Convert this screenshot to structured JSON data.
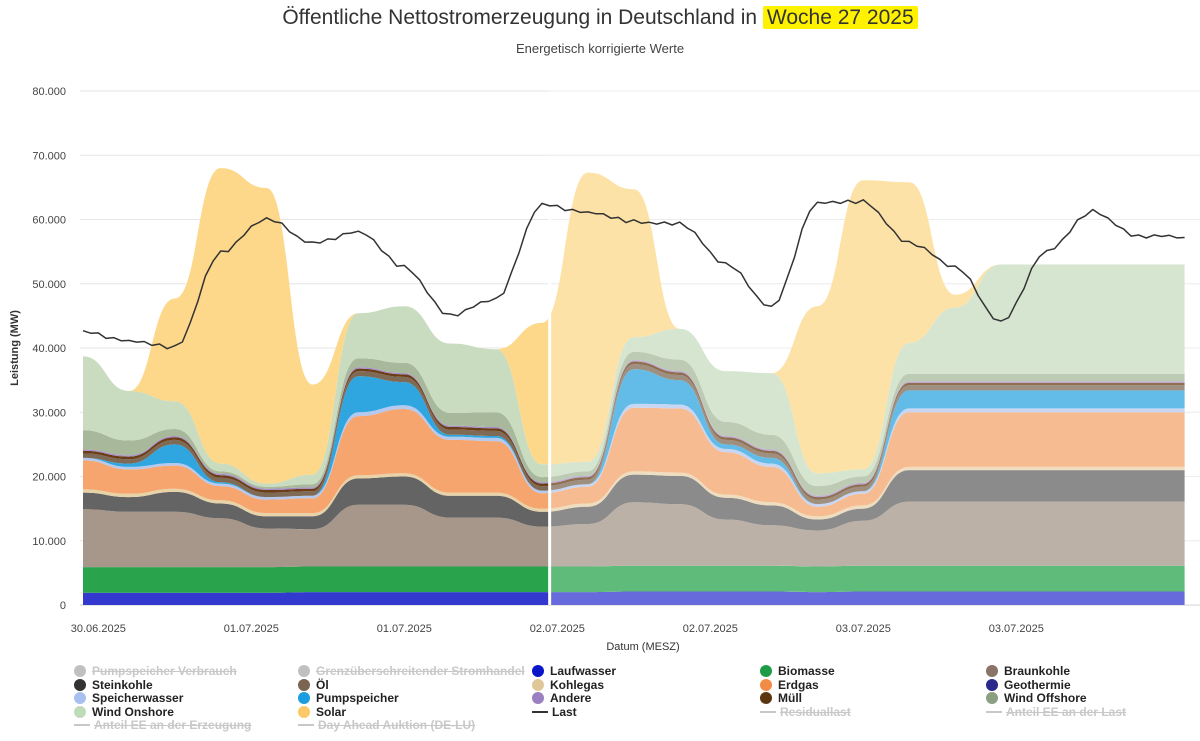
{
  "chart_data": {
    "type": "area",
    "title_prefix": "Öffentliche Nettostromerzeugung in Deutschland in ",
    "title_highlight": "Woche 27 2025",
    "subtitle": "Energetisch korrigierte Werte",
    "ylabel": "Leistung (MW)",
    "xlabel": "Datum (MESZ)",
    "ylim": [
      0,
      80000
    ],
    "yticks": [
      "0",
      "10.000",
      "20.000",
      "30.000",
      "40.000",
      "50.000",
      "60.000",
      "70.000",
      "80.000"
    ],
    "xticks": [
      "30.06.2025",
      "30.06.2025",
      "01.07.2025",
      "01.07.2025",
      "02.07.2025",
      "02.07.2025",
      "03.07.2025",
      "03.07.2025"
    ],
    "x_hours": [
      0,
      6,
      12,
      18,
      24,
      30,
      36,
      42,
      48,
      54,
      60,
      66,
      72,
      78,
      84,
      90,
      96,
      102,
      108,
      114,
      120,
      126,
      132,
      138,
      144
    ],
    "actual_until_hour": 61,
    "series": [
      {
        "name": "Laufwasser",
        "color": "#3338cf",
        "values": [
          1900,
          1900,
          1900,
          1900,
          1900,
          2000,
          2000,
          2000,
          2000,
          2000,
          2000,
          2000,
          2100,
          2100,
          2100,
          2100,
          2000,
          2100,
          2100,
          2100,
          2100,
          2100,
          2100,
          2100,
          2100
        ]
      },
      {
        "name": "Biomasse",
        "color": "#2aa44c",
        "values": [
          4000,
          4000,
          4000,
          4000,
          4000,
          4000,
          4000,
          4000,
          4000,
          4000,
          4000,
          4000,
          4000,
          4000,
          4000,
          4000,
          4000,
          4000,
          4000,
          4000,
          4000,
          4000,
          4000,
          4000,
          4000
        ]
      },
      {
        "name": "Braunkohle",
        "color": "#a6978a",
        "values": [
          9000,
          8600,
          8600,
          7600,
          6000,
          5800,
          9600,
          9600,
          7600,
          7600,
          6200,
          6600,
          9900,
          9600,
          7200,
          6300,
          5600,
          7000,
          10000,
          10000,
          10000,
          10000,
          10000,
          10000,
          10000
        ]
      },
      {
        "name": "Steinkohle",
        "color": "#646464",
        "values": [
          2600,
          2300,
          3100,
          2300,
          1900,
          2000,
          4100,
          4400,
          3400,
          3400,
          2300,
          2700,
          4300,
          4400,
          3400,
          3100,
          1700,
          1900,
          4900,
          4900,
          4900,
          4900,
          4900,
          4900,
          4900
        ]
      },
      {
        "name": "Kohlegas",
        "color": "#e8d2a8",
        "values": [
          500,
          500,
          500,
          500,
          500,
          500,
          500,
          500,
          500,
          500,
          500,
          500,
          500,
          500,
          500,
          500,
          500,
          500,
          500,
          500,
          500,
          500,
          500,
          500,
          500
        ]
      },
      {
        "name": "Erdgas",
        "color": "#f5a56d",
        "values": [
          4500,
          3800,
          3600,
          2200,
          2100,
          2300,
          9200,
          10000,
          8200,
          8000,
          2400,
          2600,
          9900,
          10000,
          6600,
          5500,
          1500,
          1800,
          8500,
          8500,
          8500,
          8500,
          8500,
          8500,
          8500
        ]
      },
      {
        "name": "Speicherwasser",
        "color": "#b5c8ee",
        "values": [
          400,
          400,
          400,
          400,
          400,
          400,
          600,
          600,
          500,
          500,
          400,
          400,
          600,
          600,
          500,
          500,
          400,
          400,
          600,
          600,
          600,
          600,
          600,
          600,
          600
        ]
      },
      {
        "name": "Pumpspeicher",
        "color": "#2fa6e0",
        "values": [
          0,
          500,
          2900,
          200,
          0,
          0,
          5600,
          3600,
          300,
          300,
          0,
          0,
          5400,
          3800,
          700,
          900,
          0,
          0,
          2800,
          2800,
          2800,
          2800,
          2800,
          2800,
          2800
        ]
      },
      {
        "name": "Öl",
        "color": "#7e6a55",
        "values": [
          700,
          700,
          700,
          700,
          700,
          700,
          800,
          800,
          800,
          800,
          700,
          700,
          800,
          800,
          700,
          700,
          700,
          700,
          800,
          800,
          800,
          800,
          800,
          800,
          800
        ]
      },
      {
        "name": "Müll",
        "color": "#6b3e17",
        "values": [
          400,
          400,
          400,
          400,
          400,
          400,
          400,
          400,
          400,
          400,
          400,
          400,
          400,
          400,
          400,
          400,
          400,
          400,
          400,
          400,
          400,
          400,
          400,
          400,
          400
        ]
      },
      {
        "name": "Andere",
        "color": "#a58cc9",
        "values": [
          200,
          200,
          200,
          200,
          200,
          200,
          200,
          200,
          200,
          200,
          200,
          200,
          200,
          200,
          200,
          200,
          200,
          200,
          200,
          200,
          200,
          200,
          200,
          200,
          200
        ]
      },
      {
        "name": "Wind Offshore",
        "color": "#a7b89b",
        "values": [
          3000,
          2300,
          1100,
          400,
          300,
          500,
          1400,
          1600,
          2000,
          2300,
          800,
          700,
          1300,
          1800,
          2200,
          2300,
          1500,
          1000,
          1200,
          1200,
          1200,
          1200,
          1200,
          1200,
          1200
        ]
      },
      {
        "name": "Wind Onshore",
        "color": "#c9dcc0",
        "values": [
          11500,
          7700,
          4300,
          1200,
          500,
          1500,
          7000,
          8800,
          10800,
          9800,
          2000,
          1500,
          2300,
          4800,
          7900,
          9600,
          2000,
          1100,
          4800,
          10300,
          17000,
          17000,
          17000,
          17000,
          17000
        ]
      },
      {
        "name": "Solar",
        "color": "#fdd88a",
        "values": [
          0,
          0,
          16000,
          46000,
          46000,
          14000,
          0,
          0,
          0,
          0,
          22000,
          45000,
          23000,
          0,
          0,
          0,
          26000,
          45000,
          25000,
          2000,
          0,
          0,
          0,
          0,
          0
        ]
      }
    ],
    "last_line": {
      "name": "Last",
      "color": "#333333",
      "values": [
        42700,
        41000,
        40000,
        55000,
        60000,
        56500,
        58000,
        52500,
        45200,
        47500,
        62500,
        61000,
        59600,
        59500,
        53000,
        46500,
        62500,
        62700,
        56500,
        52500,
        44200,
        55000,
        61200,
        57500,
        57200
      ]
    }
  },
  "legend": [
    {
      "label": "Pumpspeicher Verbrauch",
      "color": "#c0c0c0",
      "kind": "dot",
      "active": false
    },
    {
      "label": "Grenzüberschreitender Stromhandel",
      "color": "#c0c0c0",
      "kind": "dot",
      "active": false
    },
    {
      "label": "Laufwasser",
      "color": "#0a14c8",
      "kind": "dot",
      "active": true
    },
    {
      "label": "Biomasse",
      "color": "#1e9b46",
      "kind": "dot",
      "active": true
    },
    {
      "label": "Braunkohle",
      "color": "#8a7465",
      "kind": "dot",
      "active": true
    },
    {
      "label": "Steinkohle",
      "color": "#333333",
      "kind": "dot",
      "active": true
    },
    {
      "label": "Öl",
      "color": "#7a6550",
      "kind": "dot",
      "active": true
    },
    {
      "label": "Kohlegas",
      "color": "#e0c79a",
      "kind": "dot",
      "active": true
    },
    {
      "label": "Erdgas",
      "color": "#f28b45",
      "kind": "dot",
      "active": true
    },
    {
      "label": "Geothermie",
      "color": "#2a2a8a",
      "kind": "dot",
      "active": true
    },
    {
      "label": "Speicherwasser",
      "color": "#a8c0f0",
      "kind": "dot",
      "active": true
    },
    {
      "label": "Pumpspeicher",
      "color": "#1a9ee0",
      "kind": "dot",
      "active": true
    },
    {
      "label": "Andere",
      "color": "#9a80c0",
      "kind": "dot",
      "active": true
    },
    {
      "label": "Müll",
      "color": "#5a3510",
      "kind": "dot",
      "active": true
    },
    {
      "label": "Wind Offshore",
      "color": "#8aa080",
      "kind": "dot",
      "active": true
    },
    {
      "label": "Wind Onshore",
      "color": "#bfdcb8",
      "kind": "dot",
      "active": true
    },
    {
      "label": "Solar",
      "color": "#fbc86a",
      "kind": "dot",
      "active": true
    },
    {
      "label": "Last",
      "color": "#333333",
      "kind": "line",
      "active": true
    },
    {
      "label": "Residuallast",
      "color": "#c8c8c8",
      "kind": "line",
      "active": false
    },
    {
      "label": "Anteil EE an der Last",
      "color": "#c8c8c8",
      "kind": "line",
      "active": false
    },
    {
      "label": "Anteil EE an der Erzeugung",
      "color": "#c8c8c8",
      "kind": "line",
      "active": false
    },
    {
      "label": "Day Ahead Auktion (DE-LU)",
      "color": "#c8c8c8",
      "kind": "line",
      "active": false
    }
  ]
}
